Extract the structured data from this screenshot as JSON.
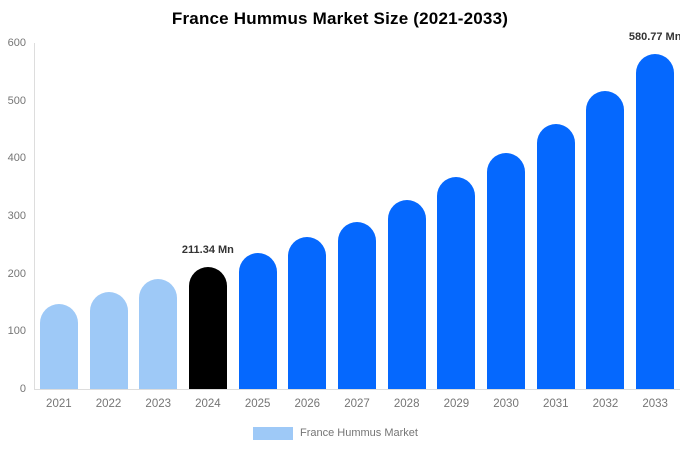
{
  "chart_data": {
    "type": "bar",
    "title": "France Hummus Market Size (2021-2033)",
    "categories": [
      "2021",
      "2022",
      "2023",
      "2024",
      "2025",
      "2026",
      "2027",
      "2028",
      "2029",
      "2030",
      "2031",
      "2032",
      "2033"
    ],
    "values": [
      148,
      168,
      190,
      211.34,
      236,
      264,
      290,
      327,
      367,
      410,
      460,
      517,
      580.77
    ],
    "bar_colors": [
      "#9EC9F7",
      "#9EC9F7",
      "#9EC9F7",
      "#000000",
      "#0568FE",
      "#0568FE",
      "#0568FE",
      "#0568FE",
      "#0568FE",
      "#0568FE",
      "#0568FE",
      "#0568FE",
      "#0568FE"
    ],
    "annotations": [
      {
        "index": 3,
        "text": "211.34 Mn"
      },
      {
        "index": 12,
        "text": "580.77 Mn"
      }
    ],
    "xlabel": "",
    "ylabel": "",
    "ylim": [
      0,
      600
    ],
    "yticks": [
      0,
      100,
      200,
      300,
      400,
      500,
      600
    ],
    "grid": false,
    "legend_position": "bottom"
  },
  "legend": {
    "label": "France Hummus Market",
    "swatch_color": "#9EC9F7"
  },
  "colors": {
    "axis_line": "#dddddd",
    "tick_label": "#757575",
    "annotation": "#333333",
    "title": "#000000",
    "background": "#ffffff"
  }
}
